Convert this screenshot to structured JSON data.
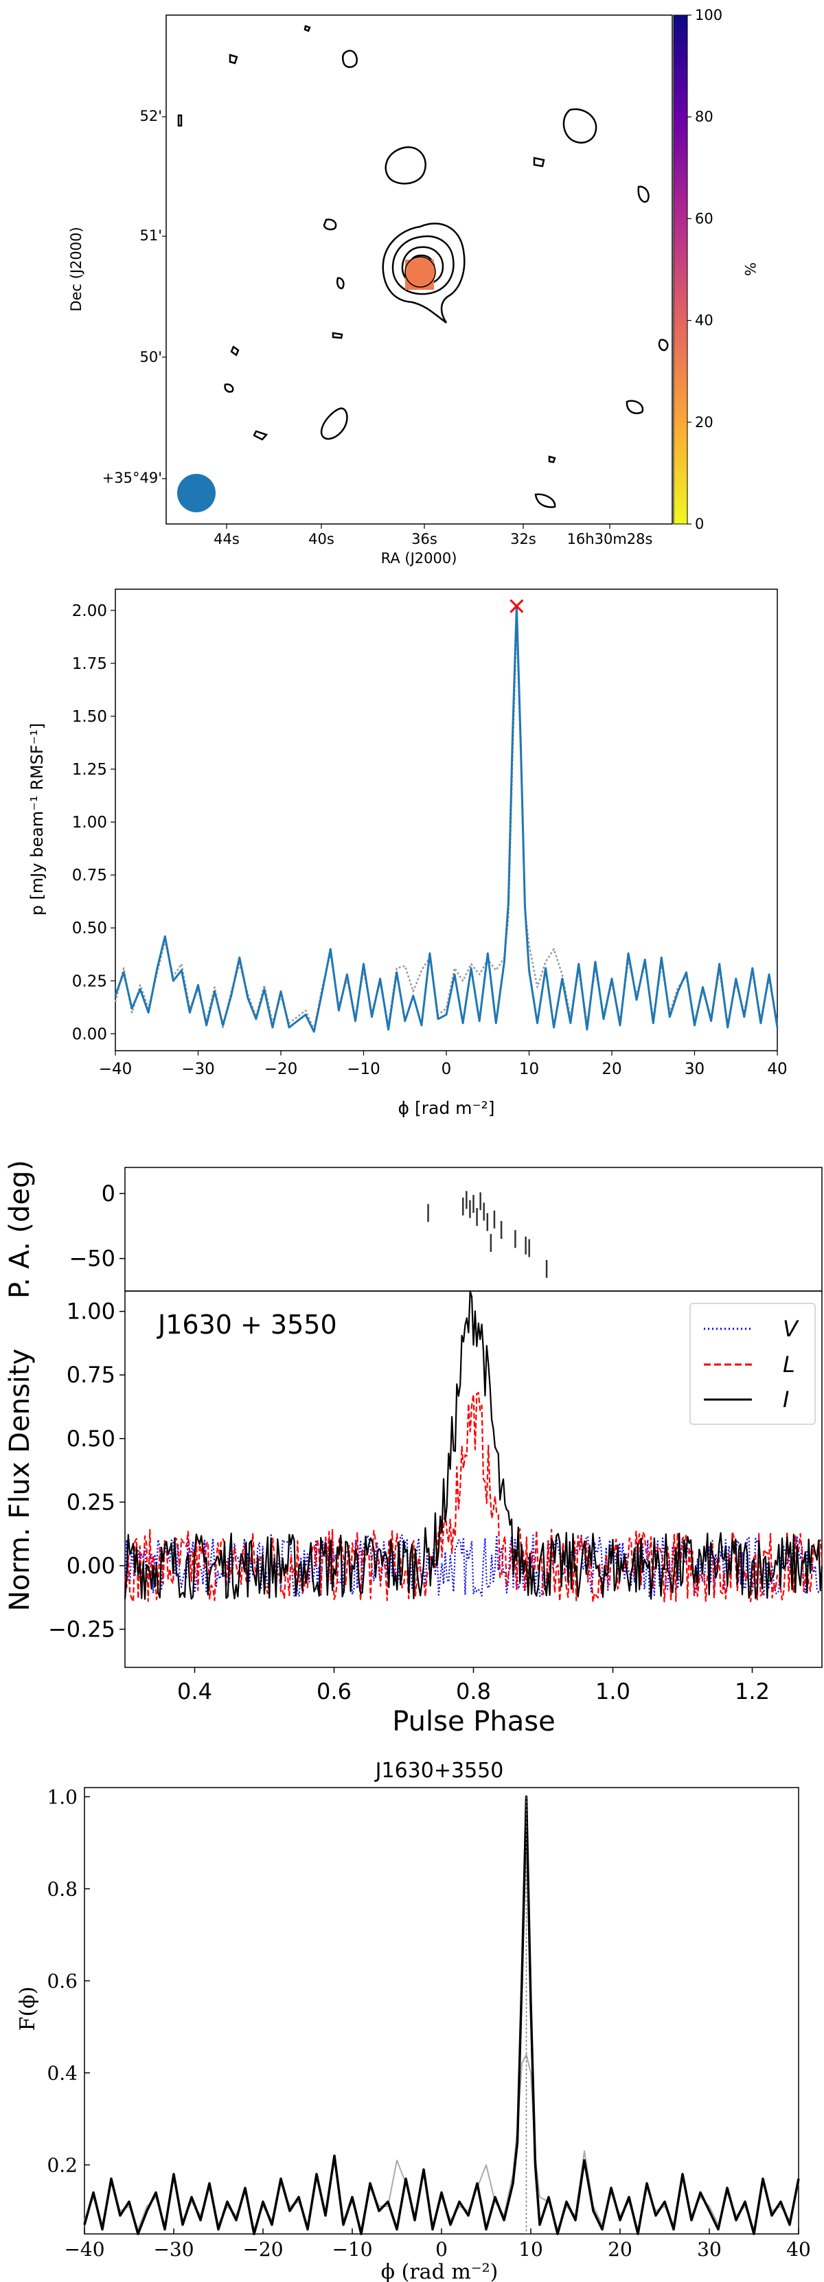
{
  "chart_data": [
    {
      "type": "image",
      "xlabel": "RA (J2000)",
      "ylabel": "Dec (J2000)",
      "x_ticks": [
        "44s",
        "40s",
        "36s",
        "32s",
        "16h30m28s"
      ],
      "y_ticks": [
        "52'",
        "51'",
        "50'",
        "+35°49'"
      ],
      "colorbar": {
        "label": "%",
        "ticks": [
          0,
          20,
          40,
          60,
          80,
          100
        ],
        "range": [
          0,
          100
        ],
        "colormap": "plasma_r"
      },
      "source_fraction": 33,
      "colors": {
        "contour": "#000000",
        "beam": "#1f77b4",
        "source": "#ef7b4d"
      }
    },
    {
      "type": "line",
      "xlabel": "ϕ [rad m⁻²]",
      "ylabel": "p [mJy beam⁻¹ RMSF⁻¹]",
      "xlim": [
        -40,
        40
      ],
      "ylim": [
        -0.08,
        2.1
      ],
      "x_ticks": [
        -40,
        -30,
        -20,
        -10,
        0,
        10,
        20,
        30,
        40
      ],
      "y_ticks": [
        "0.00",
        "0.25",
        "0.50",
        "0.75",
        "1.00",
        "1.25",
        "1.50",
        "1.75",
        "2.00"
      ],
      "peak": {
        "x": 8.5,
        "y": 2.02
      },
      "series": [
        {
          "style": "solid",
          "color": "#1f77b4",
          "x": [
            -40,
            -39,
            -38,
            -37,
            -36,
            -35,
            -34,
            -33,
            -32,
            -31,
            -30,
            -29,
            -28,
            -27,
            -26,
            -25,
            -24,
            -23,
            -22,
            -21,
            -20,
            -19,
            -18,
            -17,
            -16,
            -15,
            -14,
            -13,
            -12,
            -11,
            -10,
            -9,
            -8,
            -7,
            -6,
            -5,
            -4,
            -3,
            -2,
            -1,
            0,
            1,
            2,
            3,
            4,
            5,
            6,
            7,
            7.5,
            8,
            8.5,
            9,
            9.5,
            10,
            11,
            12,
            13,
            14,
            15,
            16,
            17,
            18,
            19,
            20,
            21,
            22,
            23,
            24,
            25,
            26,
            27,
            28,
            29,
            30,
            31,
            32,
            33,
            34,
            35,
            36,
            37,
            38,
            39,
            40
          ],
          "y": [
            0.18,
            0.29,
            0.12,
            0.21,
            0.1,
            0.3,
            0.46,
            0.25,
            0.3,
            0.1,
            0.23,
            0.04,
            0.2,
            0.04,
            0.18,
            0.36,
            0.17,
            0.07,
            0.21,
            0.03,
            0.2,
            0.03,
            0.06,
            0.09,
            0.01,
            0.2,
            0.4,
            0.11,
            0.28,
            0.06,
            0.33,
            0.08,
            0.26,
            0.02,
            0.29,
            0.06,
            0.18,
            0.04,
            0.38,
            0.07,
            0.09,
            0.28,
            0.05,
            0.31,
            0.06,
            0.38,
            0.05,
            0.34,
            0.62,
            1.4,
            2.02,
            1.35,
            0.6,
            0.3,
            0.05,
            0.31,
            0.03,
            0.26,
            0.05,
            0.33,
            0.02,
            0.34,
            0.07,
            0.26,
            0.04,
            0.38,
            0.16,
            0.35,
            0.05,
            0.36,
            0.08,
            0.2,
            0.29,
            0.04,
            0.22,
            0.06,
            0.33,
            0.03,
            0.26,
            0.08,
            0.31,
            0.05,
            0.28,
            0.03
          ]
        },
        {
          "style": "dotted",
          "color": "#999999",
          "x": [
            -40,
            -39,
            -38,
            -37,
            -36,
            -35,
            -34,
            -33,
            -32,
            -31,
            -30,
            -29,
            -28,
            -27,
            -26,
            -25,
            -24,
            -23,
            -22,
            -21,
            -20,
            -19,
            -18,
            -17,
            -16,
            -15,
            -14,
            -13,
            -12,
            -11,
            -10,
            -9,
            -8,
            -7,
            -6,
            -5,
            -4,
            -3,
            -2,
            -1,
            0,
            1,
            2,
            3,
            4,
            5,
            6,
            7,
            7.5,
            8,
            8.5,
            9,
            9.5,
            10,
            11,
            12,
            13,
            14,
            15,
            16,
            17,
            18,
            19,
            20,
            21,
            22,
            23,
            24,
            25,
            26,
            27,
            28,
            29,
            30,
            31,
            32,
            33,
            34,
            35,
            36,
            37,
            38,
            39,
            40
          ],
          "y": [
            0.15,
            0.31,
            0.1,
            0.23,
            0.12,
            0.28,
            0.44,
            0.27,
            0.33,
            0.12,
            0.21,
            0.06,
            0.22,
            0.03,
            0.2,
            0.33,
            0.19,
            0.08,
            0.23,
            0.05,
            0.18,
            0.05,
            0.08,
            0.11,
            0.02,
            0.22,
            0.38,
            0.13,
            0.26,
            0.08,
            0.3,
            0.1,
            0.24,
            0.04,
            0.31,
            0.32,
            0.2,
            0.3,
            0.36,
            0.09,
            0.12,
            0.31,
            0.25,
            0.33,
            0.28,
            0.35,
            0.3,
            0.36,
            0.55,
            1.3,
            1.95,
            1.3,
            0.58,
            0.42,
            0.22,
            0.34,
            0.4,
            0.28,
            0.08,
            0.3,
            0.05,
            0.31,
            0.09,
            0.24,
            0.06,
            0.35,
            0.18,
            0.33,
            0.07,
            0.33,
            0.1,
            0.22,
            0.27,
            0.06,
            0.2,
            0.08,
            0.3,
            0.05,
            0.24,
            0.1,
            0.29,
            0.07,
            0.26,
            0.05
          ]
        }
      ]
    },
    {
      "type": "line",
      "annotation": "J1630 + 3550",
      "xlabel": "Pulse Phase",
      "ylabel": "Norm.  Flux Density",
      "pa_ylabel": "P. A.  (deg)",
      "xlim": [
        0.3,
        1.3
      ],
      "ylim": [
        -0.4,
        1.08
      ],
      "x_ticks": [
        "0.4",
        "0.6",
        "0.8",
        "1.0",
        "1.2"
      ],
      "y_ticks": [
        "−0.25",
        "0.00",
        "0.25",
        "0.50",
        "0.75",
        "1.00"
      ],
      "pa_ylim": [
        -75,
        20
      ],
      "pa_ticks": [
        "0",
        "−50"
      ],
      "legend": {
        "position": "top-right",
        "entries": [
          {
            "label": "V",
            "color": "#0000ff",
            "style": "dotted"
          },
          {
            "label": "L",
            "color": "#ff0000",
            "style": "dashed"
          },
          {
            "label": "I",
            "color": "#000000",
            "style": "solid"
          }
        ]
      },
      "pa_points": [
        {
          "x": 0.735,
          "y": -15
        },
        {
          "x": 0.785,
          "y": -10
        },
        {
          "x": 0.79,
          "y": -5
        },
        {
          "x": 0.795,
          "y": -12
        },
        {
          "x": 0.8,
          "y": -8
        },
        {
          "x": 0.805,
          "y": -18
        },
        {
          "x": 0.81,
          "y": -6
        },
        {
          "x": 0.815,
          "y": -14
        },
        {
          "x": 0.82,
          "y": -22
        },
        {
          "x": 0.825,
          "y": -38
        },
        {
          "x": 0.83,
          "y": -20
        },
        {
          "x": 0.84,
          "y": -28
        },
        {
          "x": 0.86,
          "y": -35
        },
        {
          "x": 0.875,
          "y": -40
        },
        {
          "x": 0.88,
          "y": -42
        },
        {
          "x": 0.905,
          "y": -58
        }
      ],
      "profile": {
        "peak_phase": 0.8,
        "peak_I": 1.0,
        "peak_L": 0.6,
        "noise_I": 0.12,
        "noise_L": 0.13,
        "noise_V": 0.11
      }
    },
    {
      "type": "line",
      "title": "J1630+3550",
      "xlabel": "ϕ (rad m⁻²)",
      "ylabel": "F(ϕ)",
      "xlim": [
        -40,
        40
      ],
      "ylim": [
        0.05,
        1.02
      ],
      "x_ticks": [
        -40,
        -30,
        -20,
        -10,
        0,
        10,
        20,
        30,
        40
      ],
      "y_ticks": [
        "0.2",
        "0.4",
        "0.6",
        "0.8",
        "1.0"
      ],
      "peak": {
        "x": 9.5,
        "y": 1.0
      },
      "series": [
        {
          "style": "solid",
          "color": "#000000",
          "x": [
            -40,
            -39,
            -38,
            -37,
            -36,
            -35,
            -34,
            -33,
            -32,
            -31,
            -30,
            -29,
            -28,
            -27,
            -26,
            -25,
            -24,
            -23,
            -22,
            -21,
            -20,
            -19,
            -18,
            -17,
            -16,
            -15,
            -14,
            -13,
            -12,
            -11,
            -10,
            -9,
            -8,
            -7,
            -6,
            -5,
            -4,
            -3,
            -2,
            -1,
            0,
            1,
            2,
            3,
            4,
            5,
            6,
            7,
            8,
            8.5,
            9,
            9.5,
            10,
            10.5,
            11,
            12,
            13,
            14,
            15,
            16,
            17,
            18,
            19,
            20,
            21,
            22,
            23,
            24,
            25,
            26,
            27,
            28,
            29,
            30,
            31,
            32,
            33,
            34,
            35,
            36,
            37,
            38,
            39,
            40
          ],
          "y": [
            0.07,
            0.14,
            0.06,
            0.17,
            0.09,
            0.12,
            0.05,
            0.1,
            0.14,
            0.06,
            0.18,
            0.07,
            0.13,
            0.08,
            0.16,
            0.06,
            0.12,
            0.08,
            0.15,
            0.05,
            0.12,
            0.07,
            0.17,
            0.1,
            0.13,
            0.06,
            0.18,
            0.09,
            0.22,
            0.07,
            0.13,
            0.05,
            0.16,
            0.1,
            0.12,
            0.06,
            0.17,
            0.08,
            0.19,
            0.06,
            0.14,
            0.07,
            0.12,
            0.09,
            0.16,
            0.06,
            0.13,
            0.08,
            0.16,
            0.25,
            0.6,
            1.0,
            0.55,
            0.2,
            0.07,
            0.13,
            0.05,
            0.12,
            0.08,
            0.21,
            0.1,
            0.06,
            0.15,
            0.08,
            0.13,
            0.05,
            0.16,
            0.09,
            0.12,
            0.06,
            0.18,
            0.08,
            0.14,
            0.1,
            0.06,
            0.15,
            0.08,
            0.12,
            0.05,
            0.17,
            0.09,
            0.12,
            0.07,
            0.17
          ]
        },
        {
          "style": "solid",
          "color": "#aaaaaa",
          "x": [
            -40,
            -39,
            -38,
            -37,
            -36,
            -35,
            -34,
            -33,
            -32,
            -31,
            -30,
            -29,
            -28,
            -27,
            -26,
            -25,
            -24,
            -23,
            -22,
            -21,
            -20,
            -19,
            -18,
            -17,
            -16,
            -15,
            -14,
            -13,
            -12,
            -11,
            -10,
            -9,
            -8,
            -7,
            -6,
            -5,
            -4,
            -3,
            -2,
            -1,
            0,
            1,
            2,
            3,
            4,
            5,
            6,
            7,
            8,
            8.5,
            9,
            9.5,
            10,
            10.5,
            11,
            12,
            13,
            14,
            15,
            16,
            17,
            18,
            19,
            20,
            21,
            22,
            23,
            24,
            25,
            26,
            27,
            28,
            29,
            30,
            31,
            32,
            33,
            34,
            35,
            36,
            37,
            38,
            39,
            40
          ],
          "y": [
            0.08,
            0.13,
            0.07,
            0.16,
            0.1,
            0.11,
            0.06,
            0.11,
            0.13,
            0.07,
            0.17,
            0.08,
            0.12,
            0.09,
            0.15,
            0.07,
            0.11,
            0.09,
            0.14,
            0.06,
            0.11,
            0.08,
            0.16,
            0.11,
            0.12,
            0.07,
            0.17,
            0.1,
            0.21,
            0.08,
            0.12,
            0.06,
            0.15,
            0.11,
            0.11,
            0.21,
            0.16,
            0.09,
            0.18,
            0.07,
            0.13,
            0.08,
            0.11,
            0.1,
            0.15,
            0.2,
            0.12,
            0.09,
            0.18,
            0.28,
            0.42,
            0.44,
            0.4,
            0.22,
            0.13,
            0.12,
            0.06,
            0.11,
            0.09,
            0.23,
            0.11,
            0.07,
            0.14,
            0.09,
            0.12,
            0.06,
            0.15,
            0.1,
            0.11,
            0.07,
            0.17,
            0.09,
            0.13,
            0.11,
            0.07,
            0.14,
            0.09,
            0.11,
            0.06,
            0.16,
            0.1,
            0.11,
            0.08,
            0.16
          ]
        }
      ]
    }
  ]
}
